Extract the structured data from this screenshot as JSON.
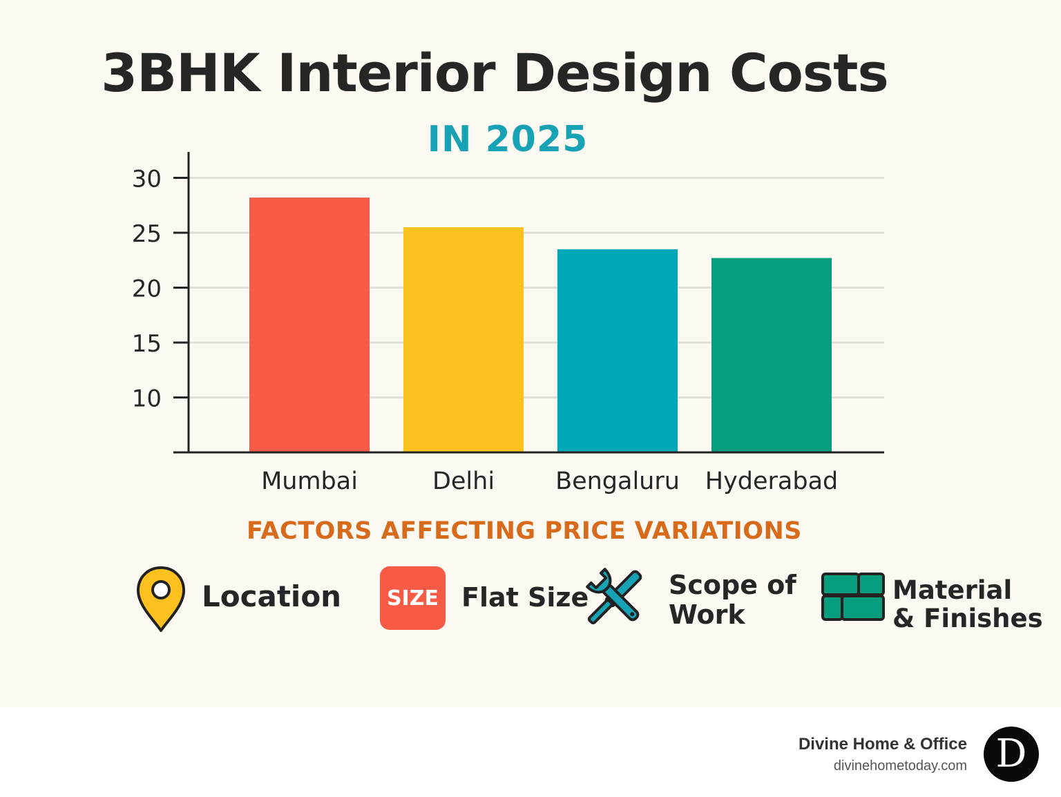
{
  "chart_data": {
    "type": "bar",
    "title": "3BHK Interior Design Costs",
    "subtitle": "IN 2025",
    "categories": [
      "Mumbai",
      "Delhi",
      "Bengaluru",
      "Hyderabad"
    ],
    "values": [
      28.2,
      25.5,
      23.5,
      22.7
    ],
    "colors": [
      "#f75a45",
      "#fcc11e",
      "#01a8b8",
      "#069e7e"
    ],
    "yticks": [
      10,
      15,
      20,
      25,
      30
    ],
    "ylim": [
      5,
      32
    ],
    "xlabel": "",
    "ylabel": "",
    "grid": true
  },
  "factors": {
    "heading": "FACTORS AFFECTING PRICE VARIATIONS",
    "items": [
      {
        "label": "Location",
        "icon": "map-pin-icon"
      },
      {
        "label": "Flat Size",
        "icon": "size-badge-icon",
        "icon_text": "SIZE"
      },
      {
        "label_line1": "Scope of",
        "label_line2": "Work",
        "icon": "wrench-screwdriver-icon"
      },
      {
        "label_line1": "Material",
        "label_line2": "& Finishes",
        "icon": "tiles-icon"
      }
    ]
  },
  "brand": {
    "name": "Divine Home & Office",
    "url": "divinehometoday.com",
    "logo_letter": "D"
  },
  "colors": {
    "background": "#fcf9f3",
    "title": "#262626",
    "subtitle": "#17a3b5",
    "factors_heading": "#d86a1b"
  }
}
